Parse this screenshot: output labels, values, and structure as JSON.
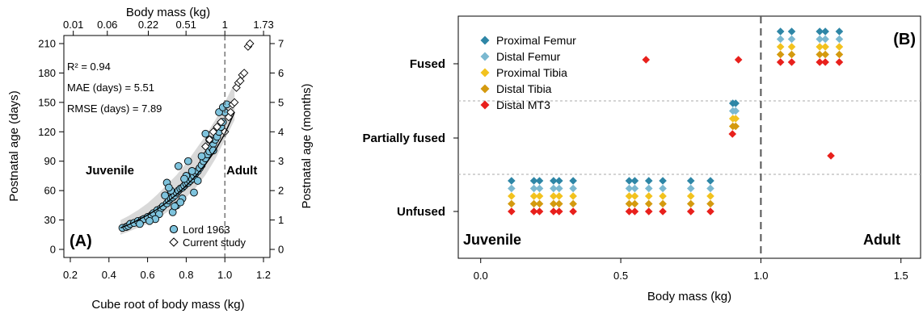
{
  "chart_data": [
    {
      "type": "scatter",
      "panel_label": "(A)",
      "xlabel": "Cube root of body mass (kg)",
      "xlim": [
        0.2,
        1.2
      ],
      "x_ticks": [
        "0.2",
        "0.4",
        "0.6",
        "0.8",
        "1.0",
        "1.2"
      ],
      "ylabel": "Postnatal age (days)",
      "ylim": [
        0,
        210
      ],
      "y_ticks": [
        "0",
        "30",
        "60",
        "90",
        "120",
        "150",
        "180",
        "210"
      ],
      "top_axis": {
        "label": "Body mass (kg)",
        "ticks": [
          {
            "x": 0.2154,
            "label": "0.01"
          },
          {
            "x": 0.3915,
            "label": "0.06"
          },
          {
            "x": 0.6037,
            "label": "0.22"
          },
          {
            "x": 0.799,
            "label": "0.51"
          },
          {
            "x": 1.0,
            "label": "1"
          },
          {
            "x": 1.2003,
            "label": "1.73"
          }
        ]
      },
      "right_axis": {
        "label": "Postnatal age (months)",
        "ticks": [
          {
            "y": 0,
            "label": "0"
          },
          {
            "y": 30,
            "label": "1"
          },
          {
            "y": 60,
            "label": "2"
          },
          {
            "y": 90,
            "label": "3"
          },
          {
            "y": 120,
            "label": "4"
          },
          {
            "y": 150,
            "label": "5"
          },
          {
            "y": 180,
            "label": "6"
          },
          {
            "y": 210,
            "label": "7"
          }
        ]
      },
      "stats": {
        "r2": "R² = 0.94",
        "mae": "MAE (days) = 5.51",
        "rmse": "RMSE (days) = 7.89"
      },
      "region_labels": {
        "juvenile": "Juvenile",
        "adult": "Adult"
      },
      "threshold_x": 1.0,
      "band": {
        "x": [
          0.46,
          0.5,
          0.55,
          0.6,
          0.65,
          0.7,
          0.75,
          0.8,
          0.85,
          0.9,
          0.95,
          1.0,
          1.05
        ],
        "upper": [
          30,
          34,
          40,
          47,
          56,
          66,
          76,
          88,
          102,
          116,
          132,
          150,
          170
        ],
        "lower": [
          15,
          18,
          22,
          26,
          31,
          38,
          45,
          53,
          63,
          76,
          92,
          112,
          132
        ]
      },
      "fit_line": {
        "x": [
          0.46,
          0.5,
          0.55,
          0.6,
          0.65,
          0.7,
          0.75,
          0.8,
          0.85,
          0.9,
          0.95,
          1.0,
          1.05
        ],
        "y": [
          22,
          25,
          30,
          35,
          41,
          48,
          56,
          65,
          75,
          87,
          101,
          118,
          140
        ]
      },
      "series": [
        {
          "name": "Lord 1963",
          "marker": "circle",
          "color": "#7ec3dd",
          "points": [
            [
              0.47,
              22
            ],
            [
              0.49,
              23
            ],
            [
              0.5,
              24
            ],
            [
              0.51,
              26
            ],
            [
              0.53,
              27
            ],
            [
              0.55,
              29
            ],
            [
              0.57,
              30
            ],
            [
              0.58,
              31
            ],
            [
              0.6,
              33
            ],
            [
              0.62,
              35
            ],
            [
              0.63,
              37
            ],
            [
              0.65,
              40
            ],
            [
              0.67,
              42
            ],
            [
              0.68,
              44
            ],
            [
              0.7,
              47
            ],
            [
              0.71,
              50
            ],
            [
              0.72,
              52
            ],
            [
              0.73,
              53
            ],
            [
              0.74,
              55
            ],
            [
              0.75,
              58
            ],
            [
              0.76,
              60
            ],
            [
              0.77,
              62
            ],
            [
              0.78,
              63
            ],
            [
              0.79,
              65
            ],
            [
              0.8,
              67
            ],
            [
              0.81,
              68
            ],
            [
              0.82,
              70
            ],
            [
              0.83,
              72
            ],
            [
              0.84,
              75
            ],
            [
              0.85,
              78
            ],
            [
              0.86,
              80
            ],
            [
              0.87,
              83
            ],
            [
              0.88,
              86
            ],
            [
              0.89,
              90
            ],
            [
              0.9,
              93
            ],
            [
              0.91,
              97
            ],
            [
              0.92,
              100
            ],
            [
              0.93,
              104
            ],
            [
              0.94,
              108
            ],
            [
              0.95,
              112
            ],
            [
              0.96,
              115
            ],
            [
              0.97,
              120
            ],
            [
              0.98,
              125
            ],
            [
              0.99,
              130
            ],
            [
              1.0,
              140
            ],
            [
              0.72,
              60
            ],
            [
              0.75,
              45
            ],
            [
              0.7,
              68
            ],
            [
              0.73,
              38
            ],
            [
              0.8,
              75
            ],
            [
              0.81,
              90
            ],
            [
              0.78,
              52
            ],
            [
              0.76,
              85
            ],
            [
              0.66,
              36
            ],
            [
              0.64,
              31
            ],
            [
              0.69,
              55
            ],
            [
              0.71,
              63
            ],
            [
              0.77,
              48
            ],
            [
              0.83,
              80
            ],
            [
              0.86,
              70
            ],
            [
              0.88,
              95
            ],
            [
              0.9,
              118
            ],
            [
              0.92,
              112
            ],
            [
              0.94,
              101
            ],
            [
              0.97,
              140
            ],
            [
              0.99,
              145
            ],
            [
              1.01,
              148
            ],
            [
              0.84,
              58
            ],
            [
              0.79,
              72
            ],
            [
              0.74,
              44
            ],
            [
              0.61,
              29
            ],
            [
              0.56,
              26
            ]
          ]
        },
        {
          "name": "Current study",
          "marker": "diamond",
          "color": "#ffffff",
          "points": [
            [
              0.9,
              105
            ],
            [
              0.92,
              112
            ],
            [
              0.94,
              120
            ],
            [
              0.96,
              125
            ],
            [
              0.98,
              130
            ],
            [
              1.0,
              120
            ],
            [
              1.02,
              135
            ],
            [
              1.03,
              140
            ],
            [
              1.04,
              148
            ],
            [
              1.05,
              150
            ],
            [
              1.06,
              165
            ],
            [
              1.07,
              170
            ],
            [
              1.08,
              172
            ],
            [
              1.09,
              178
            ],
            [
              1.1,
              180
            ],
            [
              1.12,
              207
            ],
            [
              1.13,
              210
            ]
          ]
        }
      ]
    },
    {
      "type": "scatter",
      "panel_label": "(B)",
      "xlabel": "Body mass (kg)",
      "xlim": [
        -0.08,
        1.57
      ],
      "x_ticks": [
        {
          "x": 0,
          "label": "0.0"
        },
        {
          "x": 0.5,
          "label": "0.5"
        },
        {
          "x": 1.0,
          "label": "1.0"
        },
        {
          "x": 1.5,
          "label": "1.5"
        }
      ],
      "y_categories": [
        "Unfused",
        "Partially fused",
        "Fused"
      ],
      "threshold_x": 1.0,
      "region_labels": {
        "juvenile": "Juvenile",
        "adult": "Adult"
      },
      "legend": {
        "position": "top-left"
      },
      "series": [
        {
          "name": "Proximal Femur",
          "color": "#2e86a6",
          "marker": "diamond"
        },
        {
          "name": "Distal Femur",
          "color": "#7ab8d0",
          "marker": "diamond"
        },
        {
          "name": "Proximal Tibia",
          "color": "#f2c21e",
          "marker": "diamond"
        },
        {
          "name": "Distal Tibia",
          "color": "#d49a0f",
          "marker": "diamond"
        },
        {
          "name": "Distal MT3",
          "color": "#e8201c",
          "marker": "diamond"
        }
      ],
      "unfused_x": [
        0.11,
        0.19,
        0.21,
        0.26,
        0.28,
        0.33,
        0.53,
        0.55,
        0.6,
        0.65,
        0.75,
        0.82
      ],
      "partially_fused_x": [
        0.9,
        0.91
      ],
      "fused_x": [
        1.07,
        1.11,
        1.21,
        1.23,
        1.28
      ],
      "extra_points": [
        {
          "series": "Distal MT3",
          "x": 0.59,
          "category": "Fused"
        },
        {
          "series": "Distal MT3",
          "x": 0.92,
          "category": "Fused"
        },
        {
          "series": "Distal MT3",
          "x": 1.25,
          "category": "Partially fused"
        }
      ]
    }
  ]
}
